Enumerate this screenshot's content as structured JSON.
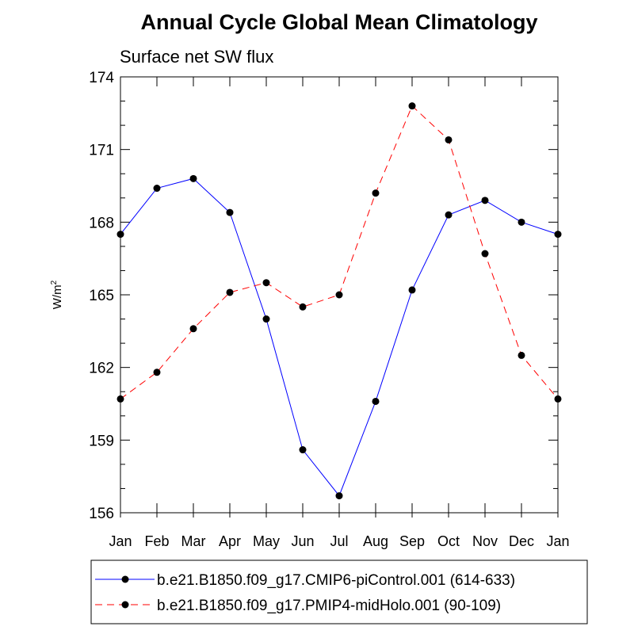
{
  "chart_data": {
    "type": "line",
    "title": "Annual Cycle Global Mean Climatology",
    "subtitle": "Surface net SW flux",
    "ylabel_base": "W/m",
    "ylabel_sup": "2",
    "ylim": [
      156,
      174
    ],
    "yticks": [
      156,
      159,
      162,
      165,
      168,
      171,
      174
    ],
    "categories": [
      "Jan",
      "Feb",
      "Mar",
      "Apr",
      "May",
      "Jun",
      "Jul",
      "Aug",
      "Sep",
      "Oct",
      "Nov",
      "Dec",
      "Jan"
    ],
    "series": [
      {
        "name": "b.e21.B1850.f09_g17.CMIP6-piControl.001 (614-633)",
        "color": "#0000ff",
        "dash": "solid",
        "values": [
          167.5,
          169.4,
          169.8,
          168.4,
          164.0,
          158.6,
          156.7,
          160.6,
          165.2,
          168.3,
          168.9,
          168.0,
          167.5
        ]
      },
      {
        "name": "b.e21.B1850.f09_g17.PMIP4-midHolo.001 (90-109)",
        "color": "#ff0000",
        "dash": "dashed",
        "values": [
          160.7,
          161.8,
          163.6,
          165.1,
          165.5,
          164.5,
          165.0,
          169.2,
          172.8,
          171.4,
          166.7,
          162.5,
          160.7
        ]
      }
    ],
    "legend_position": "bottom"
  }
}
